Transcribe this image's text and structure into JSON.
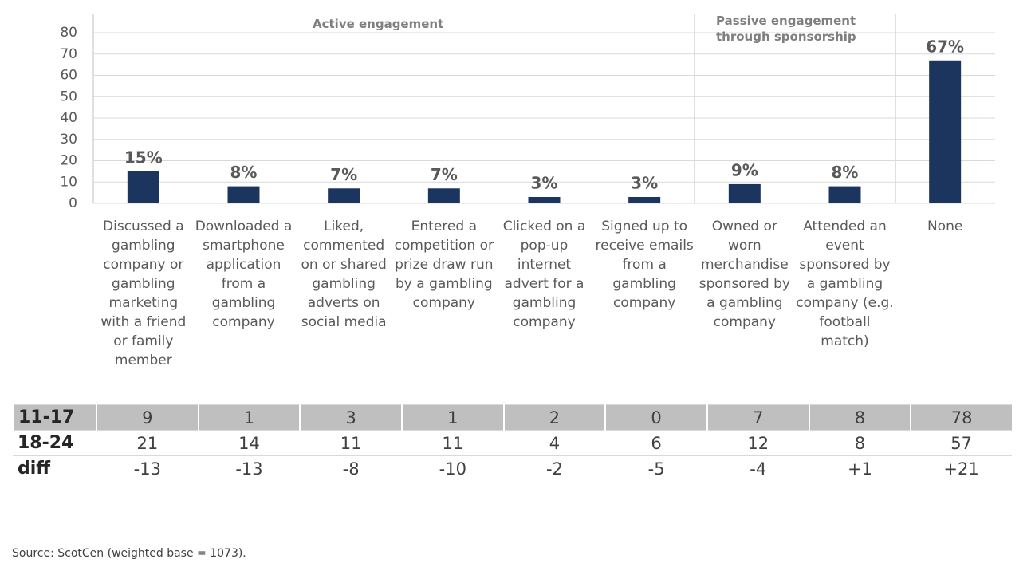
{
  "chart_data": {
    "type": "bar",
    "categories": [
      "Discussed a gambling company or gambling marketing with a friend or family member",
      "Downloaded a smartphone application from a gambling company",
      "Liked, commented on or shared gambling adverts on social media",
      "Entered a competition or prize draw run by a gambling company",
      "Clicked on a pop-up internet advert for a gambling company",
      "Signed up to receive emails from a gambling company",
      "Owned or worn merchandise sponsored by a gambling company",
      "Attended an event sponsored by a gambling company (e.g. football match)",
      "None"
    ],
    "values": [
      15,
      8,
      7,
      7,
      3,
      3,
      9,
      8,
      67
    ],
    "value_labels": [
      "15%",
      "8%",
      "7%",
      "7%",
      "3%",
      "3%",
      "9%",
      "8%",
      "67%"
    ],
    "color": "#1c355e",
    "annotations": [
      "Active engagement",
      "Passive engagement through sponsorship"
    ],
    "ylim": [
      0,
      80
    ],
    "yticks": [
      0,
      10,
      20,
      30,
      40,
      50,
      60,
      70,
      80
    ],
    "grid": true
  },
  "table": {
    "rows": [
      [
        "11-17",
        "9",
        "1",
        "3",
        "1",
        "2",
        "0",
        "7",
        "8",
        "78"
      ],
      [
        "18-24",
        "21",
        "14",
        "11",
        "11",
        "4",
        "6",
        "12",
        "8",
        "57"
      ],
      [
        "diff",
        "-13",
        "-13",
        "-8",
        "-10",
        "-2",
        "-5",
        "-4",
        "+1",
        "+21"
      ]
    ]
  },
  "source": "Source: ScotCen (weighted base = 1073)."
}
